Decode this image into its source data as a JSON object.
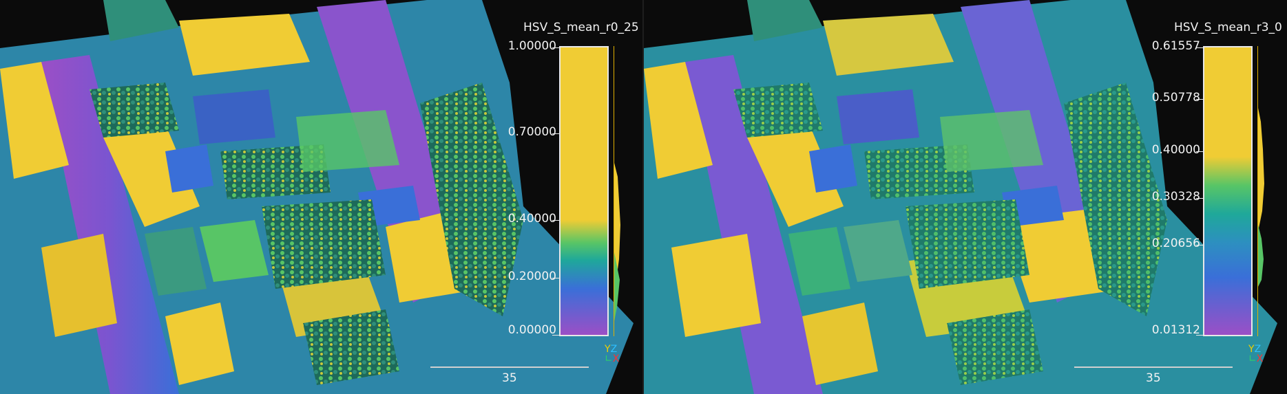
{
  "colors": {
    "background": "#0b0b0b",
    "purple": "#9b4fc6",
    "blue": "#3a6fd8",
    "teal": "#1fa89a",
    "green": "#58c566",
    "yellow": "#f0cc34"
  },
  "panels": [
    {
      "title": "HSV_S_mean_r0_25",
      "ticks": [
        "1.00000",
        "0.70000",
        "0.40000",
        "0.20000",
        "0.00000"
      ],
      "scale_label": "35",
      "axes": {
        "y": "Y",
        "z": "Z",
        "x": "X"
      }
    },
    {
      "title": "HSV_S_mean_r3_0",
      "ticks": [
        "0.61557",
        "0.50778",
        "0.40000",
        "0.30328",
        "0.20656",
        "0.01312"
      ],
      "scale_label": "35",
      "axes": {
        "y": "Y",
        "z": "Z",
        "x": "X"
      }
    }
  ]
}
